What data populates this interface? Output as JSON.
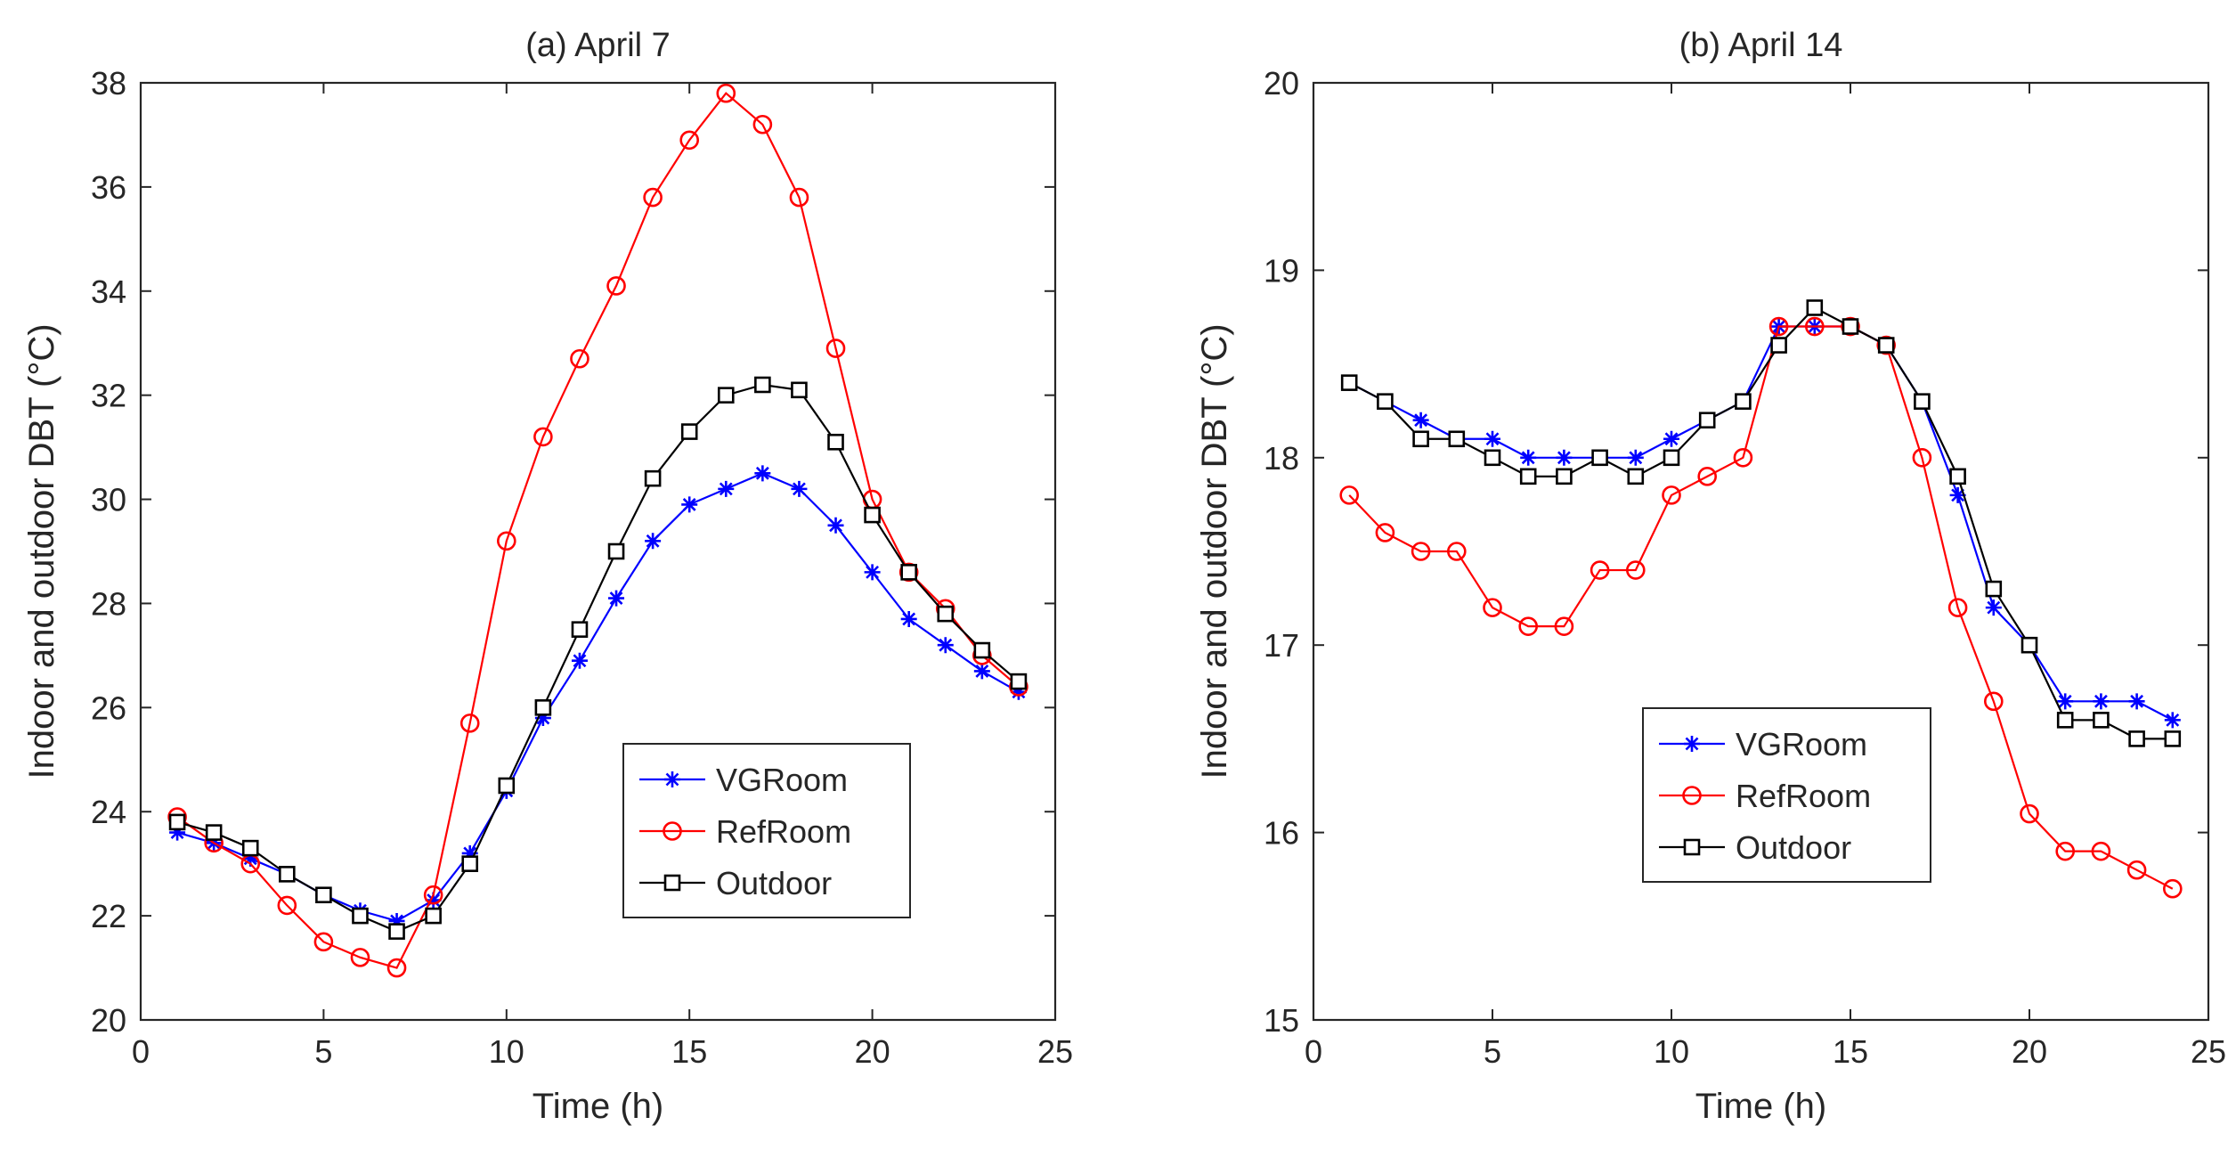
{
  "chart_data": [
    {
      "type": "line",
      "title": "(a) April 7",
      "xlabel": "Time (h)",
      "ylabel": "Indoor and outdoor DBT (°C)",
      "xlim": [
        0,
        25
      ],
      "ylim": [
        20,
        38
      ],
      "xticks": [
        0,
        5,
        10,
        15,
        20,
        25
      ],
      "yticks": [
        20,
        22,
        24,
        26,
        28,
        30,
        32,
        34,
        36,
        38
      ],
      "legend_position": "lower-right",
      "x": [
        1,
        2,
        3,
        4,
        5,
        6,
        7,
        8,
        9,
        10,
        11,
        12,
        13,
        14,
        15,
        16,
        17,
        18,
        19,
        20,
        21,
        22,
        23,
        24
      ],
      "series": [
        {
          "name": "VGRoom",
          "color": "#0000ff",
          "marker": "asterisk",
          "values": [
            23.6,
            23.4,
            23.1,
            22.8,
            22.4,
            22.1,
            21.9,
            22.3,
            23.2,
            24.4,
            25.8,
            26.9,
            28.1,
            29.2,
            29.9,
            30.2,
            30.5,
            30.2,
            29.5,
            28.6,
            27.7,
            27.2,
            26.7,
            26.3
          ]
        },
        {
          "name": "RefRoom",
          "color": "#ff0000",
          "marker": "circle",
          "values": [
            23.9,
            23.4,
            23.0,
            22.2,
            21.5,
            21.2,
            21.0,
            22.4,
            25.7,
            29.2,
            31.2,
            32.7,
            34.1,
            35.8,
            36.9,
            37.8,
            37.2,
            35.8,
            32.9,
            30.0,
            28.6,
            27.9,
            27.0,
            26.4
          ]
        },
        {
          "name": "Outdoor",
          "color": "#000000",
          "marker": "square",
          "values": [
            23.8,
            23.6,
            23.3,
            22.8,
            22.4,
            22.0,
            21.7,
            22.0,
            23.0,
            24.5,
            26.0,
            27.5,
            29.0,
            30.4,
            31.3,
            32.0,
            32.2,
            32.1,
            31.1,
            29.7,
            28.6,
            27.8,
            27.1,
            26.5
          ]
        }
      ]
    },
    {
      "type": "line",
      "title": "(b) April 14",
      "xlabel": "Time (h)",
      "ylabel": "Indoor and outdoor DBT (°C)",
      "xlim": [
        0,
        25
      ],
      "ylim": [
        15,
        20
      ],
      "xticks": [
        0,
        5,
        10,
        15,
        20,
        25
      ],
      "yticks": [
        15,
        16,
        17,
        18,
        19,
        20
      ],
      "legend_position": "lower-right",
      "x": [
        1,
        2,
        3,
        4,
        5,
        6,
        7,
        8,
        9,
        10,
        11,
        12,
        13,
        14,
        15,
        16,
        17,
        18,
        19,
        20,
        21,
        22,
        23,
        24
      ],
      "series": [
        {
          "name": "VGRoom",
          "color": "#0000ff",
          "marker": "asterisk",
          "values": [
            18.4,
            18.3,
            18.2,
            18.1,
            18.1,
            18.0,
            18.0,
            18.0,
            18.0,
            18.1,
            18.2,
            18.3,
            18.7,
            18.7,
            18.7,
            18.6,
            18.3,
            17.8,
            17.2,
            17.0,
            16.7,
            16.7,
            16.7,
            16.6
          ]
        },
        {
          "name": "RefRoom",
          "color": "#ff0000",
          "marker": "circle",
          "values": [
            17.8,
            17.6,
            17.5,
            17.5,
            17.2,
            17.1,
            17.1,
            17.4,
            17.4,
            17.8,
            17.9,
            18.0,
            18.7,
            18.7,
            18.7,
            18.6,
            18.0,
            17.2,
            16.7,
            16.1,
            15.9,
            15.9,
            15.8,
            15.7
          ]
        },
        {
          "name": "Outdoor",
          "color": "#000000",
          "marker": "square",
          "values": [
            18.4,
            18.3,
            18.1,
            18.1,
            18.0,
            17.9,
            17.9,
            18.0,
            17.9,
            18.0,
            18.2,
            18.3,
            18.6,
            18.8,
            18.7,
            18.6,
            18.3,
            17.9,
            17.3,
            17.0,
            16.6,
            16.6,
            16.5,
            16.5
          ]
        }
      ]
    }
  ]
}
